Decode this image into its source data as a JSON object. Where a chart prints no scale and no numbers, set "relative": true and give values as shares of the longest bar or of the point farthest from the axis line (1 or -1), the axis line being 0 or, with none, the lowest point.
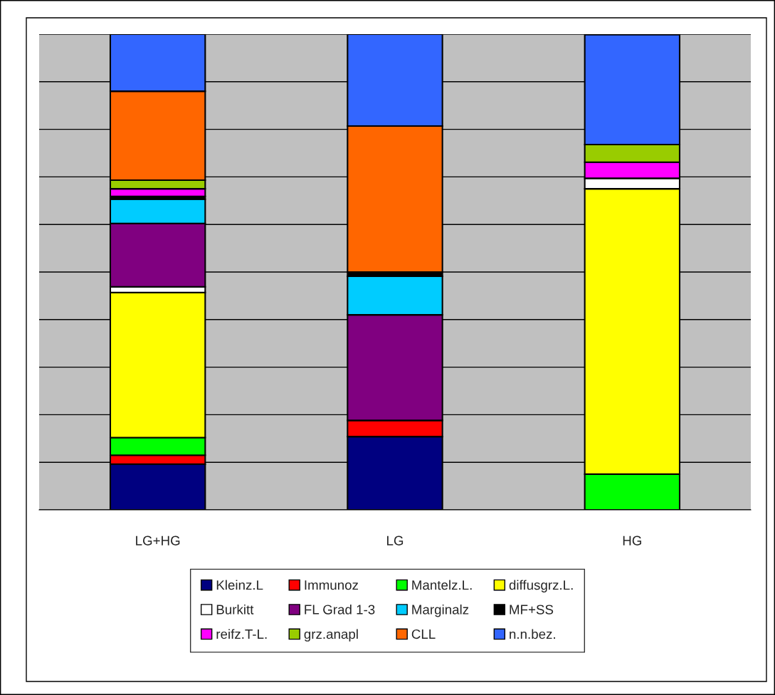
{
  "chart_data": {
    "type": "bar",
    "stacked": true,
    "relative": true,
    "grid": "y",
    "legend": "bottom",
    "categories": [
      "LG+HG",
      "LG",
      "HG"
    ],
    "series": [
      {
        "name": "Kleinz.L",
        "color": "#000080",
        "values": [
          0.096,
          0.154,
          null
        ]
      },
      {
        "name": "Immunoz",
        "color": "#ff0000",
        "values": [
          0.019,
          0.034,
          null
        ]
      },
      {
        "name": "Mantelz.L.",
        "color": "#00ff00",
        "values": [
          0.037,
          null,
          0.075
        ]
      },
      {
        "name": "diffusgrz.L.",
        "color": "#ffff00",
        "values": [
          0.305,
          null,
          0.6
        ]
      },
      {
        "name": "Burkitt",
        "color": "#ffffff",
        "values": [
          0.012,
          null,
          0.022
        ]
      },
      {
        "name": "FL Grad 1-3",
        "color": "#800080",
        "values": [
          0.133,
          0.222,
          null
        ]
      },
      {
        "name": "Marginalz",
        "color": "#00ccff",
        "values": [
          0.051,
          0.081,
          null
        ]
      },
      {
        "name": "MF+SS",
        "color": "#000000",
        "values": [
          0.006,
          0.009,
          null
        ]
      },
      {
        "name": "reifz.T-L.",
        "color": "#ff00ff",
        "values": [
          0.016,
          null,
          0.034
        ]
      },
      {
        "name": "grz.anapl",
        "color": "#99cc00",
        "values": [
          0.018,
          null,
          0.037
        ]
      },
      {
        "name": "CLL",
        "color": "#ff6600",
        "values": [
          0.187,
          0.307,
          null
        ]
      },
      {
        "name": "n.n.bez.",
        "color": "#3366ff",
        "values": [
          0.12,
          0.193,
          0.231
        ]
      }
    ]
  }
}
